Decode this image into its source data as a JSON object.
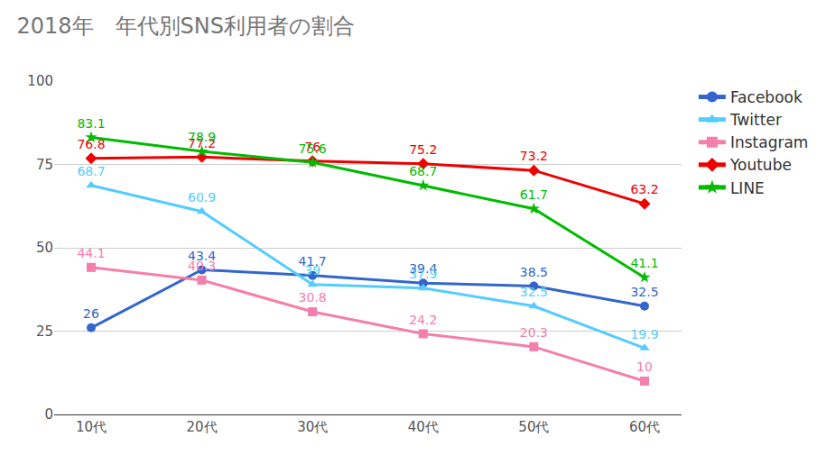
{
  "chart_data": {
    "type": "line",
    "title": "2018年　年代別SNS利用者の割合",
    "categories": [
      "10代",
      "20代",
      "30代",
      "40代",
      "50代",
      "60代"
    ],
    "series": [
      {
        "name": "Facebook",
        "color": "#3366cc",
        "marker": "circle",
        "values": [
          26,
          43.4,
          41.7,
          39.4,
          38.5,
          32.5
        ]
      },
      {
        "name": "Twitter",
        "color": "#55ccff",
        "marker": "triangle",
        "values": [
          68.7,
          60.9,
          39,
          37.9,
          32.5,
          19.9
        ]
      },
      {
        "name": "Instagram",
        "color": "#f47fab",
        "marker": "square",
        "values": [
          44.1,
          40.3,
          30.8,
          24.2,
          20.3,
          10
        ]
      },
      {
        "name": "Youtube",
        "color": "#ee0000",
        "marker": "diamond",
        "values": [
          76.8,
          77.2,
          76,
          75.2,
          73.2,
          63.2
        ]
      },
      {
        "name": "LINE",
        "color": "#00bb00",
        "marker": "star",
        "values": [
          83.1,
          78.9,
          75.6,
          68.7,
          61.7,
          41.1
        ]
      }
    ],
    "ylim": [
      0,
      100
    ],
    "yticks": [
      0,
      25,
      50,
      75,
      100
    ],
    "grid": true,
    "legend": "right",
    "data_labels": true
  }
}
